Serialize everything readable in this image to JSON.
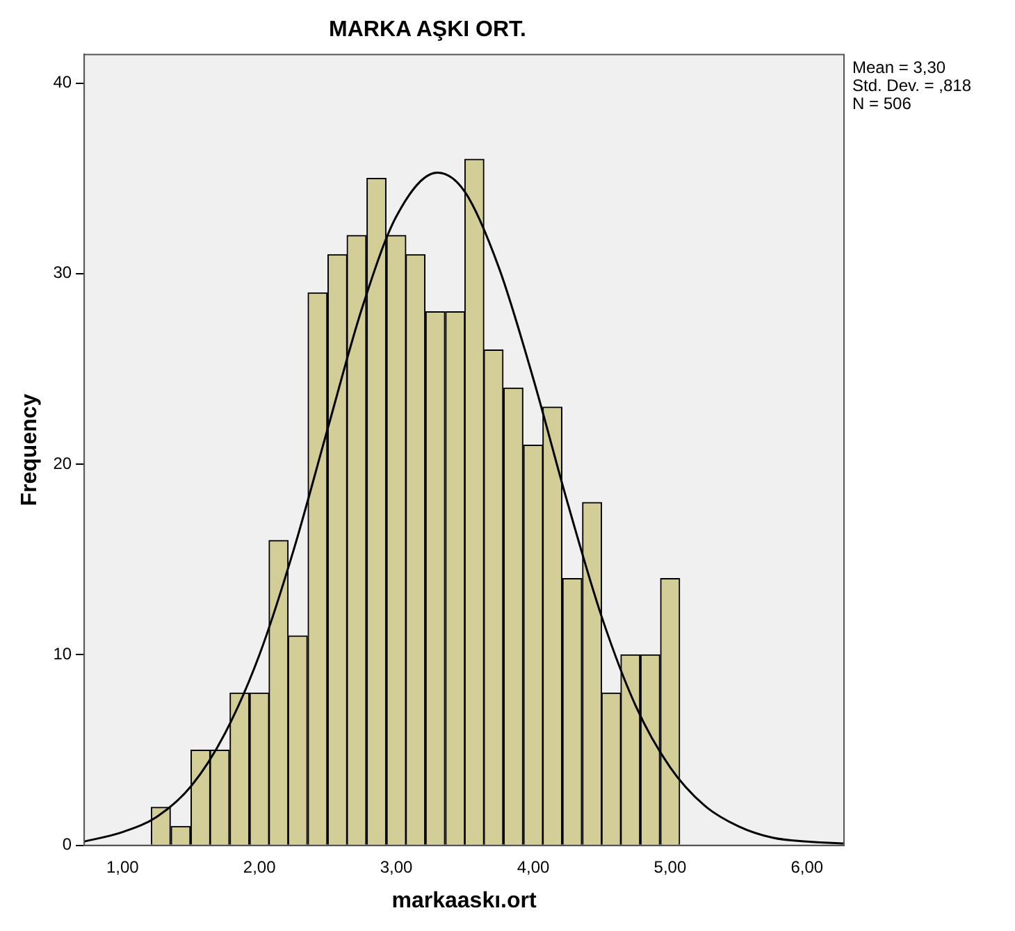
{
  "chart_data": {
    "type": "histogram",
    "title": "MARKA AŞKI ORT.",
    "xlabel": "markaaskı.ort",
    "ylabel": "Frequency",
    "bins": [
      1.21,
      1.35,
      1.5,
      1.64,
      1.78,
      1.93,
      2.07,
      2.21,
      2.35,
      2.5,
      2.64,
      2.78,
      2.93,
      3.07,
      3.21,
      3.36,
      3.5,
      3.64,
      3.78,
      3.93,
      4.07,
      4.21,
      4.36,
      4.5,
      4.64,
      4.78,
      4.93,
      5.07
    ],
    "values": [
      2,
      1,
      5,
      5,
      8,
      8,
      16,
      11,
      29,
      31,
      32,
      35,
      32,
      31,
      28,
      28,
      36,
      26,
      24,
      21,
      23,
      14,
      18,
      8,
      10,
      10,
      14
    ],
    "color": "#d3ce98",
    "series": [
      {
        "type": "line",
        "color": "#000000",
        "x": [
          0.72,
          1.0,
          1.25,
          1.5,
          1.75,
          2.0,
          2.25,
          2.5,
          2.75,
          3.0,
          3.3,
          3.5,
          3.75,
          4.0,
          4.25,
          4.5,
          4.75,
          5.0,
          5.25,
          5.5,
          5.75,
          6.0,
          6.27
        ],
        "values": [
          0.2,
          0.7,
          1.5,
          3.1,
          5.9,
          10.0,
          15.5,
          21.9,
          28.2,
          33.0,
          35.3,
          34.3,
          30.3,
          24.5,
          18.0,
          12.0,
          7.3,
          4.1,
          2.1,
          1.0,
          0.4,
          0.2,
          0.1
        ]
      }
    ],
    "xlim": [
      0.72,
      6.27
    ],
    "ylim": [
      0,
      41.5
    ],
    "xticks": [
      {
        "value": 1,
        "label": "1,00"
      },
      {
        "value": 2,
        "label": "2,00"
      },
      {
        "value": 3,
        "label": "3,00"
      },
      {
        "value": 4,
        "label": "4,00"
      },
      {
        "value": 5,
        "label": "5,00"
      },
      {
        "value": 6,
        "label": "6,00"
      }
    ],
    "yticks": [
      0,
      10,
      20,
      30,
      40
    ],
    "annotations": [
      "Mean = 3,30",
      "Std. Dev. = ,818",
      "N = 506"
    ],
    "grid": false,
    "legend": false,
    "marker": "none"
  }
}
